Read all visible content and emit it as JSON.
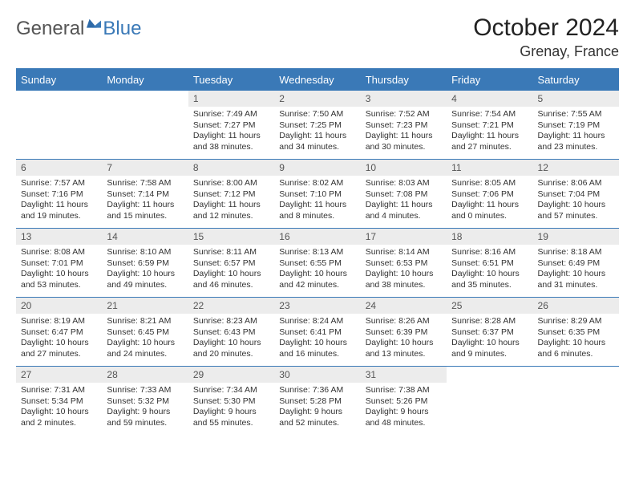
{
  "brand": {
    "part1": "General",
    "part2": "Blue",
    "accent_color": "#3a79b7"
  },
  "header": {
    "title": "October 2024",
    "location": "Grenay, France"
  },
  "calendar": {
    "columns": [
      "Sunday",
      "Monday",
      "Tuesday",
      "Wednesday",
      "Thursday",
      "Friday",
      "Saturday"
    ],
    "header_bg": "#3a79b7",
    "header_fg": "#ffffff",
    "border_color": "#3a79b7",
    "daynum_bg": "#ececec",
    "rows": [
      [
        {
          "empty": true
        },
        {
          "empty": true
        },
        {
          "day": "1",
          "sunrise": "7:49 AM",
          "sunset": "7:27 PM",
          "daylight": "11 hours and 38 minutes."
        },
        {
          "day": "2",
          "sunrise": "7:50 AM",
          "sunset": "7:25 PM",
          "daylight": "11 hours and 34 minutes."
        },
        {
          "day": "3",
          "sunrise": "7:52 AM",
          "sunset": "7:23 PM",
          "daylight": "11 hours and 30 minutes."
        },
        {
          "day": "4",
          "sunrise": "7:54 AM",
          "sunset": "7:21 PM",
          "daylight": "11 hours and 27 minutes."
        },
        {
          "day": "5",
          "sunrise": "7:55 AM",
          "sunset": "7:19 PM",
          "daylight": "11 hours and 23 minutes."
        }
      ],
      [
        {
          "day": "6",
          "sunrise": "7:57 AM",
          "sunset": "7:16 PM",
          "daylight": "11 hours and 19 minutes."
        },
        {
          "day": "7",
          "sunrise": "7:58 AM",
          "sunset": "7:14 PM",
          "daylight": "11 hours and 15 minutes."
        },
        {
          "day": "8",
          "sunrise": "8:00 AM",
          "sunset": "7:12 PM",
          "daylight": "11 hours and 12 minutes."
        },
        {
          "day": "9",
          "sunrise": "8:02 AM",
          "sunset": "7:10 PM",
          "daylight": "11 hours and 8 minutes."
        },
        {
          "day": "10",
          "sunrise": "8:03 AM",
          "sunset": "7:08 PM",
          "daylight": "11 hours and 4 minutes."
        },
        {
          "day": "11",
          "sunrise": "8:05 AM",
          "sunset": "7:06 PM",
          "daylight": "11 hours and 0 minutes."
        },
        {
          "day": "12",
          "sunrise": "8:06 AM",
          "sunset": "7:04 PM",
          "daylight": "10 hours and 57 minutes."
        }
      ],
      [
        {
          "day": "13",
          "sunrise": "8:08 AM",
          "sunset": "7:01 PM",
          "daylight": "10 hours and 53 minutes."
        },
        {
          "day": "14",
          "sunrise": "8:10 AM",
          "sunset": "6:59 PM",
          "daylight": "10 hours and 49 minutes."
        },
        {
          "day": "15",
          "sunrise": "8:11 AM",
          "sunset": "6:57 PM",
          "daylight": "10 hours and 46 minutes."
        },
        {
          "day": "16",
          "sunrise": "8:13 AM",
          "sunset": "6:55 PM",
          "daylight": "10 hours and 42 minutes."
        },
        {
          "day": "17",
          "sunrise": "8:14 AM",
          "sunset": "6:53 PM",
          "daylight": "10 hours and 38 minutes."
        },
        {
          "day": "18",
          "sunrise": "8:16 AM",
          "sunset": "6:51 PM",
          "daylight": "10 hours and 35 minutes."
        },
        {
          "day": "19",
          "sunrise": "8:18 AM",
          "sunset": "6:49 PM",
          "daylight": "10 hours and 31 minutes."
        }
      ],
      [
        {
          "day": "20",
          "sunrise": "8:19 AM",
          "sunset": "6:47 PM",
          "daylight": "10 hours and 27 minutes."
        },
        {
          "day": "21",
          "sunrise": "8:21 AM",
          "sunset": "6:45 PM",
          "daylight": "10 hours and 24 minutes."
        },
        {
          "day": "22",
          "sunrise": "8:23 AM",
          "sunset": "6:43 PM",
          "daylight": "10 hours and 20 minutes."
        },
        {
          "day": "23",
          "sunrise": "8:24 AM",
          "sunset": "6:41 PM",
          "daylight": "10 hours and 16 minutes."
        },
        {
          "day": "24",
          "sunrise": "8:26 AM",
          "sunset": "6:39 PM",
          "daylight": "10 hours and 13 minutes."
        },
        {
          "day": "25",
          "sunrise": "8:28 AM",
          "sunset": "6:37 PM",
          "daylight": "10 hours and 9 minutes."
        },
        {
          "day": "26",
          "sunrise": "8:29 AM",
          "sunset": "6:35 PM",
          "daylight": "10 hours and 6 minutes."
        }
      ],
      [
        {
          "day": "27",
          "sunrise": "7:31 AM",
          "sunset": "5:34 PM",
          "daylight": "10 hours and 2 minutes."
        },
        {
          "day": "28",
          "sunrise": "7:33 AM",
          "sunset": "5:32 PM",
          "daylight": "9 hours and 59 minutes."
        },
        {
          "day": "29",
          "sunrise": "7:34 AM",
          "sunset": "5:30 PM",
          "daylight": "9 hours and 55 minutes."
        },
        {
          "day": "30",
          "sunrise": "7:36 AM",
          "sunset": "5:28 PM",
          "daylight": "9 hours and 52 minutes."
        },
        {
          "day": "31",
          "sunrise": "7:38 AM",
          "sunset": "5:26 PM",
          "daylight": "9 hours and 48 minutes."
        },
        {
          "empty": true
        },
        {
          "empty": true
        }
      ]
    ],
    "labels": {
      "sunrise": "Sunrise:",
      "sunset": "Sunset:",
      "daylight": "Daylight:"
    }
  }
}
